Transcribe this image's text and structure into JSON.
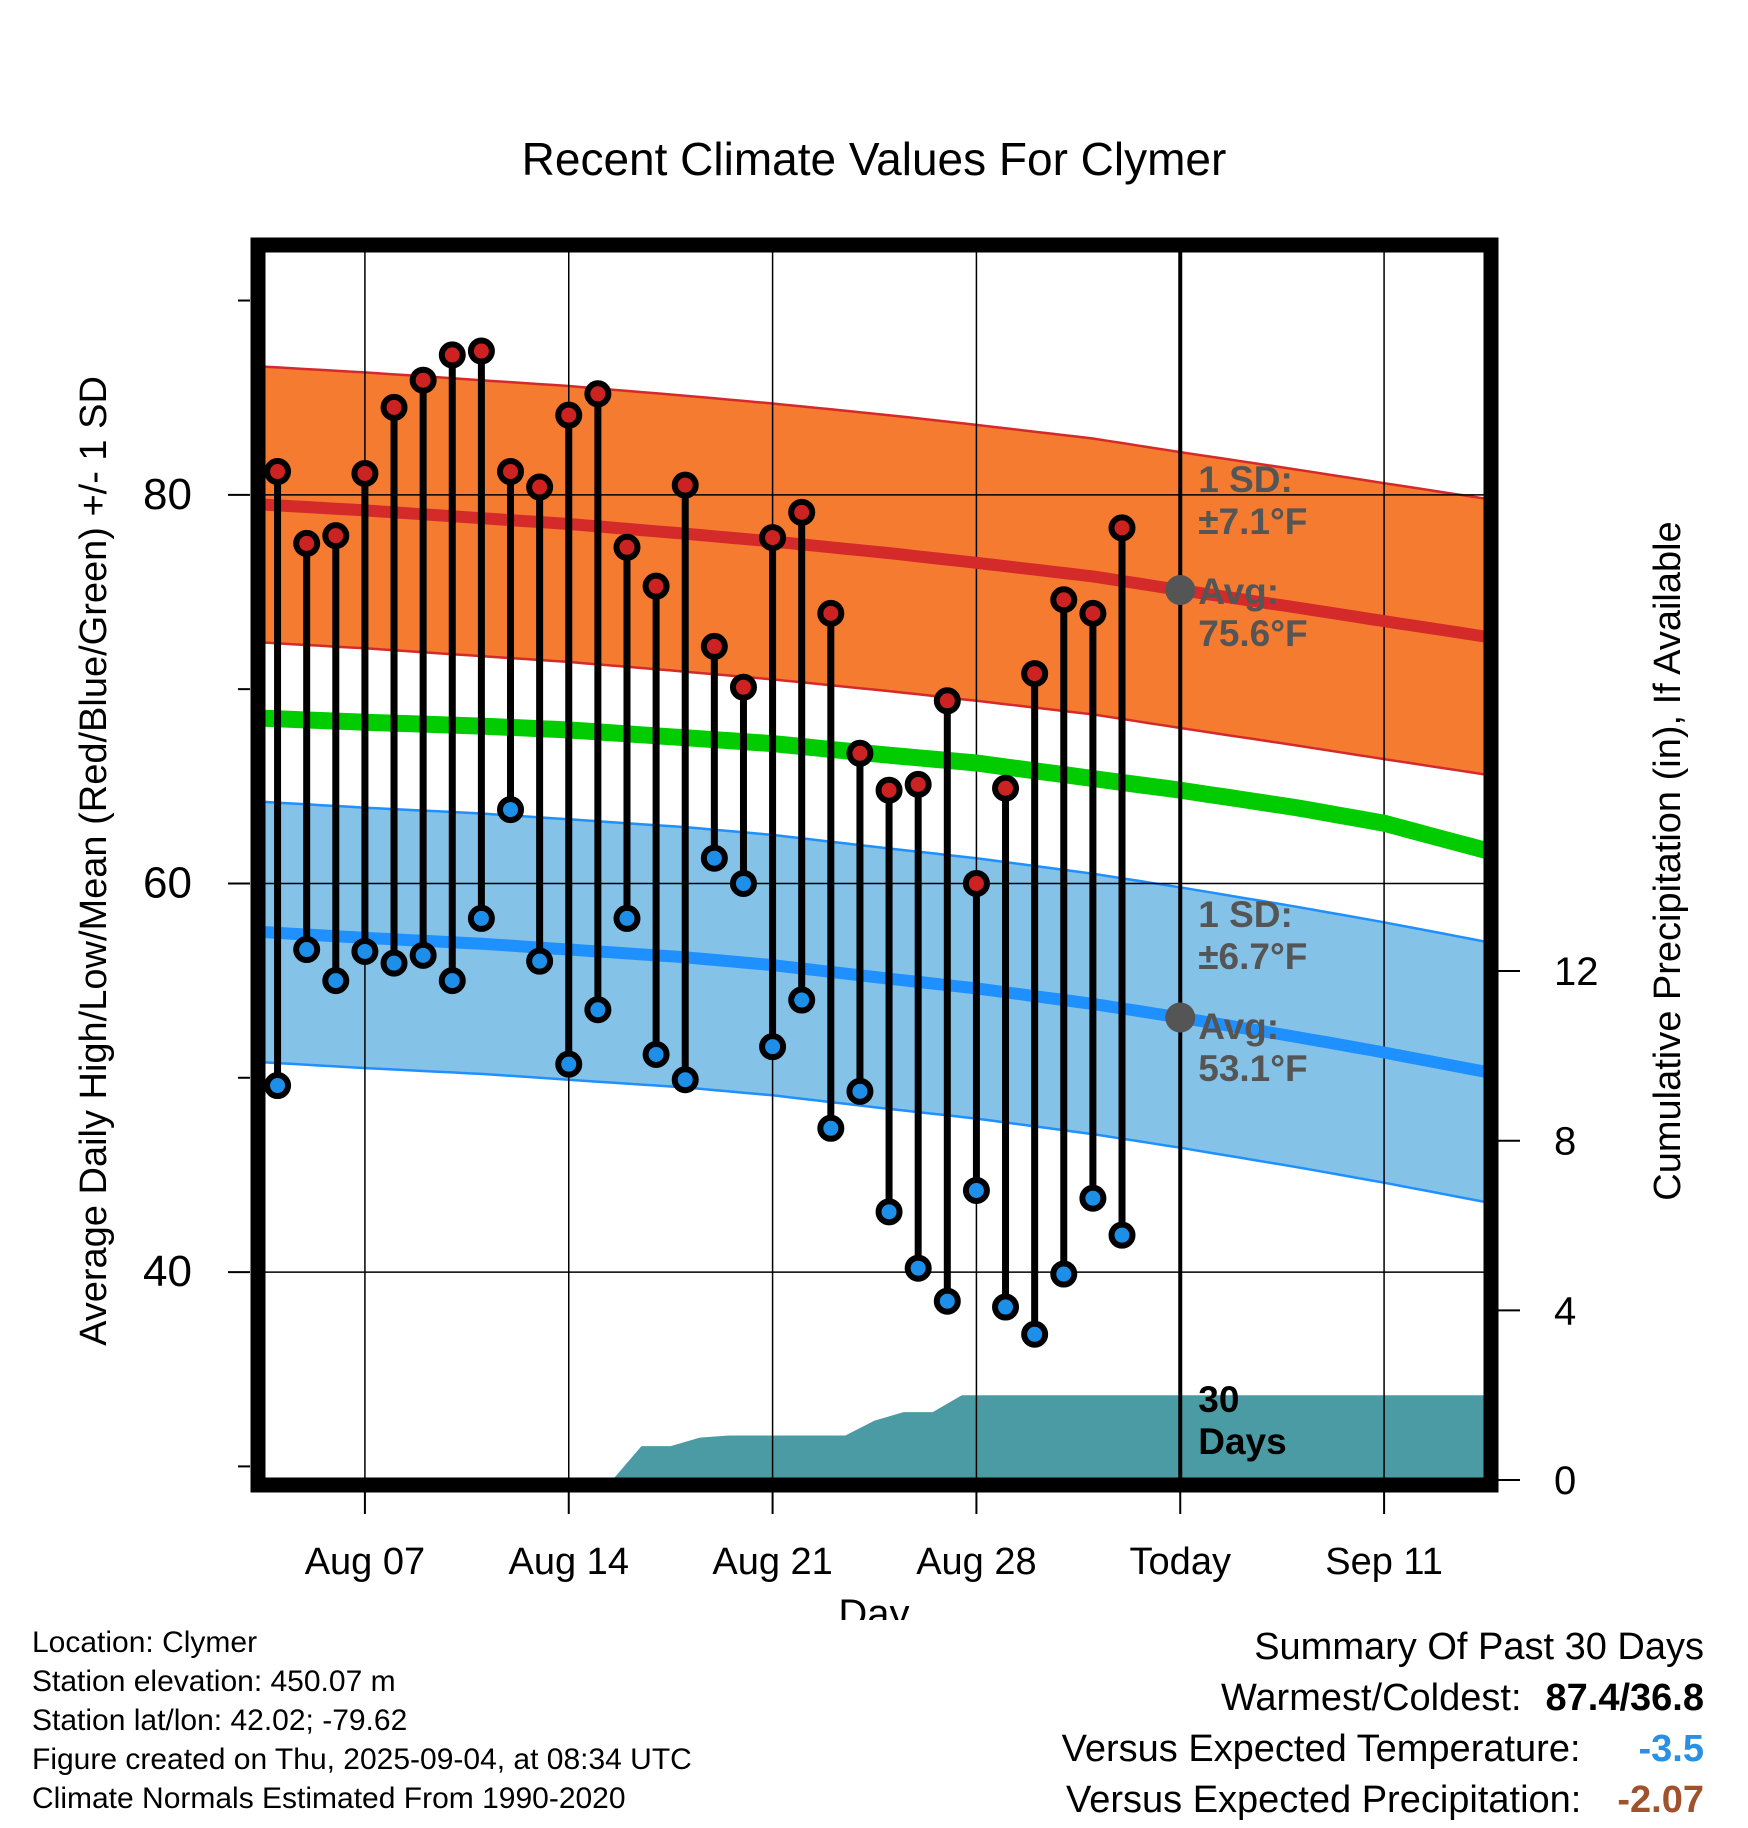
{
  "chart_data": {
    "type": "line",
    "title": "Recent Climate Values For Clymer",
    "xlabel": "Day",
    "ylabel": "Average Daily High/Low/Mean (Red/Blue/Green) +/- 1 SD",
    "y2label": "Cumulative Precipitation (in), If Available",
    "x_tick_labels": [
      "Aug 07",
      "Aug 14",
      "Aug 21",
      "Aug 28",
      "Today",
      "Sep 11"
    ],
    "x_tick_days": [
      3,
      10,
      17,
      24,
      31,
      38
    ],
    "xlim": [
      -0.5,
      41.5
    ],
    "ylim": [
      29.3,
      92.6
    ],
    "y2lim": [
      0,
      29
    ],
    "y_ticks": [
      40,
      60,
      80
    ],
    "y_minor_ticks": [
      30,
      50,
      70,
      90
    ],
    "y2_ticks": [
      0,
      4,
      8,
      12
    ],
    "grid": true,
    "days": [
      0,
      1,
      2,
      3,
      4,
      5,
      6,
      7,
      8,
      9,
      10,
      11,
      12,
      13,
      14,
      15,
      16,
      17,
      18,
      19,
      20,
      21,
      22,
      23,
      24,
      25,
      26,
      27,
      28,
      29
    ],
    "observed_high": [
      81.2,
      77.5,
      77.9,
      81.1,
      84.5,
      85.9,
      87.2,
      87.4,
      81.2,
      80.4,
      84.1,
      85.2,
      77.3,
      75.3,
      80.5,
      72.2,
      70.1,
      77.8,
      79.1,
      73.9,
      66.7,
      64.8,
      65.1,
      69.4,
      60.0,
      64.9,
      70.8,
      74.6,
      73.9,
      78.3
    ],
    "observed_low": [
      49.6,
      56.6,
      55.0,
      56.5,
      55.9,
      56.3,
      55.0,
      58.2,
      63.8,
      56.0,
      50.7,
      53.5,
      58.2,
      51.2,
      49.9,
      61.3,
      60.0,
      51.6,
      54.0,
      47.4,
      49.3,
      43.1,
      40.2,
      38.5,
      44.2,
      38.2,
      36.8,
      39.9,
      43.8,
      41.9
    ],
    "normal_high": {
      "days": [
        -0.5,
        3,
        7,
        10,
        14,
        17,
        21,
        24,
        28,
        31,
        35,
        38,
        41.5
      ],
      "values": [
        79.5,
        79.2,
        78.8,
        78.5,
        78.0,
        77.6,
        77.0,
        76.5,
        75.8,
        75.1,
        74.2,
        73.5,
        72.7
      ]
    },
    "normal_low": {
      "days": [
        -0.5,
        3,
        7,
        10,
        14,
        17,
        21,
        24,
        28,
        31,
        35,
        38,
        41.5
      ],
      "values": [
        57.5,
        57.2,
        56.9,
        56.6,
        56.2,
        55.8,
        55.1,
        54.6,
        53.8,
        53.1,
        52.1,
        51.3,
        50.3
      ]
    },
    "normal_mean": {
      "days": [
        -0.5,
        3,
        7,
        10,
        14,
        17,
        21,
        24,
        28,
        31,
        35,
        38,
        41.5
      ],
      "values": [
        68.5,
        68.3,
        68.1,
        67.9,
        67.5,
        67.2,
        66.6,
        66.2,
        65.4,
        64.8,
        63.9,
        63.1,
        61.7
      ]
    },
    "high_sd": 7.1,
    "low_sd": 6.7,
    "cumulative_precip": {
      "days": [
        -0.5,
        11.5,
        12.5,
        13.5,
        14.5,
        15.5,
        19.5,
        20.5,
        21.5,
        22.5,
        23.5,
        41.5
      ],
      "values": [
        0,
        0,
        0.8,
        0.8,
        1.0,
        1.05,
        1.05,
        1.4,
        1.6,
        1.6,
        2.0,
        2.0
      ]
    },
    "today_day": 31,
    "annotations": {
      "high_sd": [
        "1 SD:",
        "±7.1°F"
      ],
      "high_avg": [
        "Avg:",
        "75.6°F"
      ],
      "low_sd": [
        "1 SD:",
        "±6.7°F"
      ],
      "low_avg": [
        "Avg:",
        "53.1°F"
      ],
      "precip": [
        "30",
        "Days"
      ]
    },
    "colors": {
      "high_band": "#f47b30",
      "high_line": "#d42a2a",
      "low_band": "#85c2e8",
      "low_line": "#1e90ff",
      "mean_line": "#00cc00",
      "precip": "#4a9ba3",
      "high_dot": "#cc2222",
      "low_dot": "#1e8fe8",
      "annotation": "#555555"
    }
  },
  "footer": {
    "location": "Location: Clymer",
    "elevation": "Station elevation: 450.07 m",
    "latlon": "Station lat/lon: 42.02; -79.62",
    "created": "Figure created on Thu, 2025-09-04, at 08:34 UTC",
    "normals": "Climate Normals Estimated From 1990-2020"
  },
  "summary": {
    "title": "Summary Of Past 30 Days",
    "warm_cold_label": "Warmest/Coldest:",
    "warm_cold_value": "87.4/36.8",
    "temp_label": "Versus Expected Temperature:",
    "temp_value": "-3.5",
    "temp_color": "#2a90e6",
    "precip_label": "Versus Expected Precipitation:",
    "precip_value": "-2.07",
    "precip_color": "#a0522d"
  }
}
